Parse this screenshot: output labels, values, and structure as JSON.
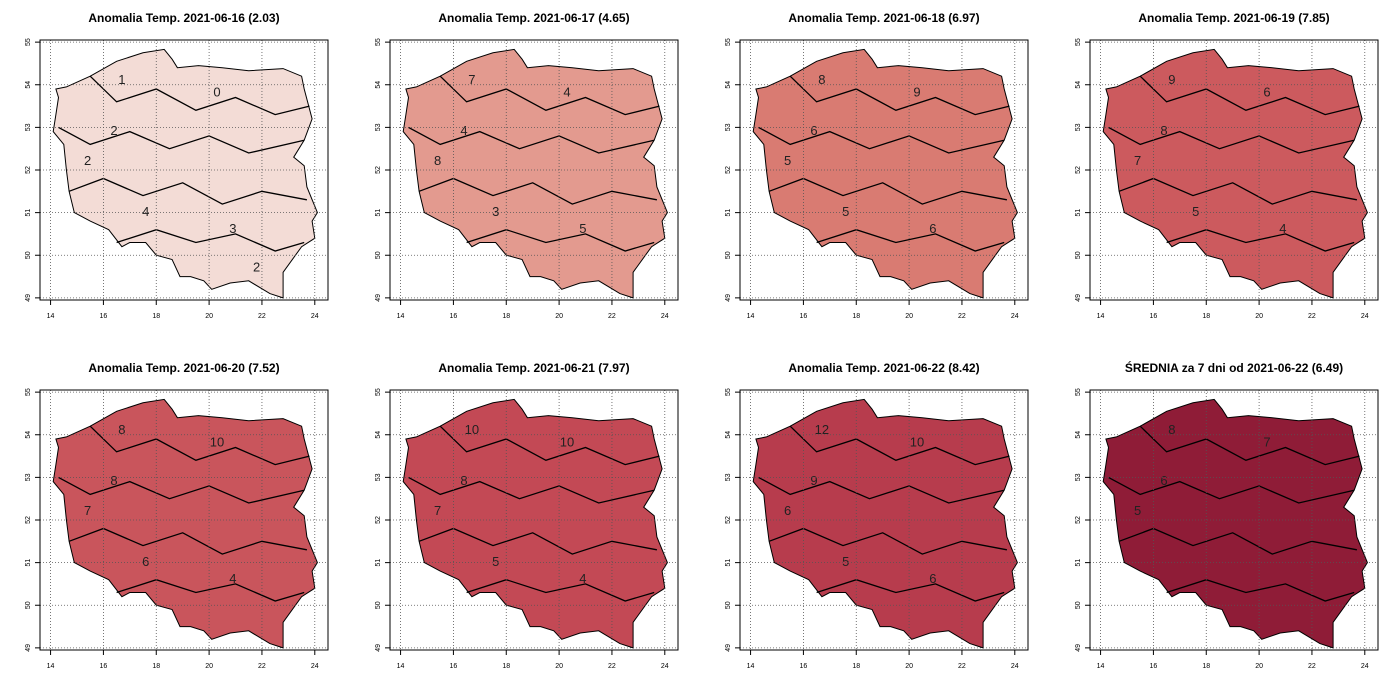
{
  "panels": [
    {
      "title": "Anomalia Temp. 2021-06-16 (2.03)",
      "color": "#f3dcd6",
      "xlim": [
        13.6,
        24.5
      ],
      "ylim": [
        48.95,
        55.05
      ],
      "xticks": [
        14,
        16,
        18,
        20,
        22,
        24
      ],
      "yticks": [
        49,
        50,
        51,
        52,
        53,
        54,
        55
      ],
      "grid": true,
      "contour_labels": [
        1,
        0,
        2,
        2,
        4,
        3,
        2
      ]
    },
    {
      "title": "Anomalia Temp. 2021-06-17 (4.65)",
      "color": "#e39a8f",
      "xlim": [
        13.6,
        24.5
      ],
      "ylim": [
        48.95,
        55.05
      ],
      "xticks": [
        14,
        16,
        18,
        20,
        22,
        24
      ],
      "yticks": [
        49,
        50,
        51,
        52,
        53,
        54,
        55
      ],
      "grid": true,
      "contour_labels": [
        7,
        4,
        4,
        8,
        3,
        5
      ]
    },
    {
      "title": "Anomalia Temp. 2021-06-18 (6.97)",
      "color": "#d97b72",
      "xlim": [
        13.6,
        24.5
      ],
      "ylim": [
        48.95,
        55.05
      ],
      "xticks": [
        14,
        16,
        18,
        20,
        22,
        24
      ],
      "yticks": [
        49,
        50,
        51,
        52,
        53,
        54,
        55
      ],
      "grid": true,
      "contour_labels": [
        8,
        9,
        6,
        5,
        5,
        6
      ]
    },
    {
      "title": "Anomalia Temp. 2021-06-19 (7.85)",
      "color": "#cc5a5e",
      "xlim": [
        13.6,
        24.5
      ],
      "ylim": [
        48.95,
        55.05
      ],
      "xticks": [
        14,
        16,
        18,
        20,
        22,
        24
      ],
      "yticks": [
        49,
        50,
        51,
        52,
        53,
        54,
        55
      ],
      "grid": true,
      "contour_labels": [
        9,
        6,
        8,
        7,
        5,
        4
      ]
    },
    {
      "title": "Anomalia Temp. 2021-06-20 (7.52)",
      "color": "#c9555c",
      "xlim": [
        13.6,
        24.5
      ],
      "ylim": [
        48.95,
        55.05
      ],
      "xticks": [
        14,
        16,
        18,
        20,
        22,
        24
      ],
      "yticks": [
        49,
        50,
        51,
        52,
        53,
        54,
        55
      ],
      "grid": true,
      "contour_labels": [
        8,
        10,
        8,
        7,
        6,
        4
      ]
    },
    {
      "title": "Anomalia Temp. 2021-06-21 (7.97)",
      "color": "#c34955",
      "xlim": [
        13.6,
        24.5
      ],
      "ylim": [
        48.95,
        55.05
      ],
      "xticks": [
        14,
        16,
        18,
        20,
        22,
        24
      ],
      "yticks": [
        49,
        50,
        51,
        52,
        53,
        54,
        55
      ],
      "grid": true,
      "contour_labels": [
        10,
        10,
        8,
        7,
        5,
        4
      ]
    },
    {
      "title": "Anomalia Temp. 2021-06-22 (8.42)",
      "color": "#b73c4d",
      "xlim": [
        13.6,
        24.5
      ],
      "ylim": [
        48.95,
        55.05
      ],
      "xticks": [
        14,
        16,
        18,
        20,
        22,
        24
      ],
      "yticks": [
        49,
        50,
        51,
        52,
        53,
        54,
        55
      ],
      "grid": true,
      "contour_labels": [
        12,
        10,
        9,
        6,
        5,
        6
      ]
    },
    {
      "title": "ŚREDNIA za 7 dni od 2021-06-22 (6.49)",
      "color": "#8f1c37",
      "xlim": [
        13.6,
        24.5
      ],
      "ylim": [
        48.95,
        55.05
      ],
      "xticks": [
        14,
        16,
        18,
        20,
        22,
        24
      ],
      "yticks": [
        49,
        50,
        51,
        52,
        53,
        54,
        55
      ],
      "grid": true,
      "contour_labels": [
        8,
        7,
        6,
        5
      ]
    }
  ]
}
